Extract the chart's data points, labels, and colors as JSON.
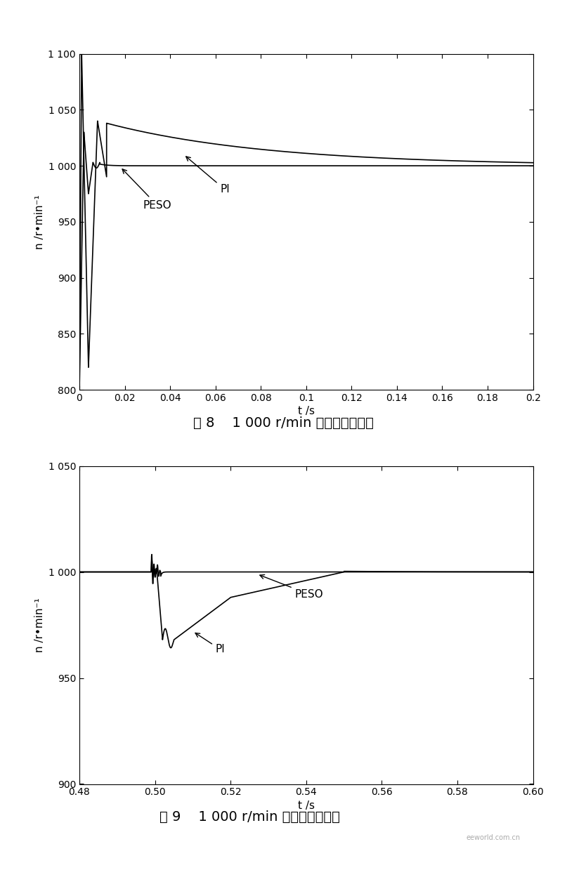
{
  "fig1": {
    "xlabel": "t /s",
    "ylabel": "n /r•min⁻¹",
    "xlim": [
      0,
      0.2
    ],
    "ylim": [
      800,
      1100
    ],
    "yticks": [
      800,
      850,
      900,
      950,
      1000,
      1050,
      1100
    ],
    "xticks": [
      0,
      0.02,
      0.04,
      0.06,
      0.08,
      0.1,
      0.12,
      0.14,
      0.16,
      0.18,
      0.2
    ],
    "caption": "图 8    1 000 r/min 时的起动对比图",
    "peso_label": "PESO",
    "pi_label": "PI"
  },
  "fig2": {
    "xlabel": "t /s",
    "ylabel": "n /r•min⁻¹",
    "xlim": [
      0.48,
      0.6
    ],
    "ylim": [
      900,
      1050
    ],
    "yticks": [
      900,
      950,
      1000,
      1050
    ],
    "xticks": [
      0.48,
      0.5,
      0.52,
      0.54,
      0.56,
      0.58,
      0.6
    ],
    "caption": "图 9    1 000 r/min 时的抗扰对比图",
    "peso_label": "PESO",
    "pi_label": "PI"
  },
  "bg_color": "#ffffff",
  "line_color": "#000000"
}
